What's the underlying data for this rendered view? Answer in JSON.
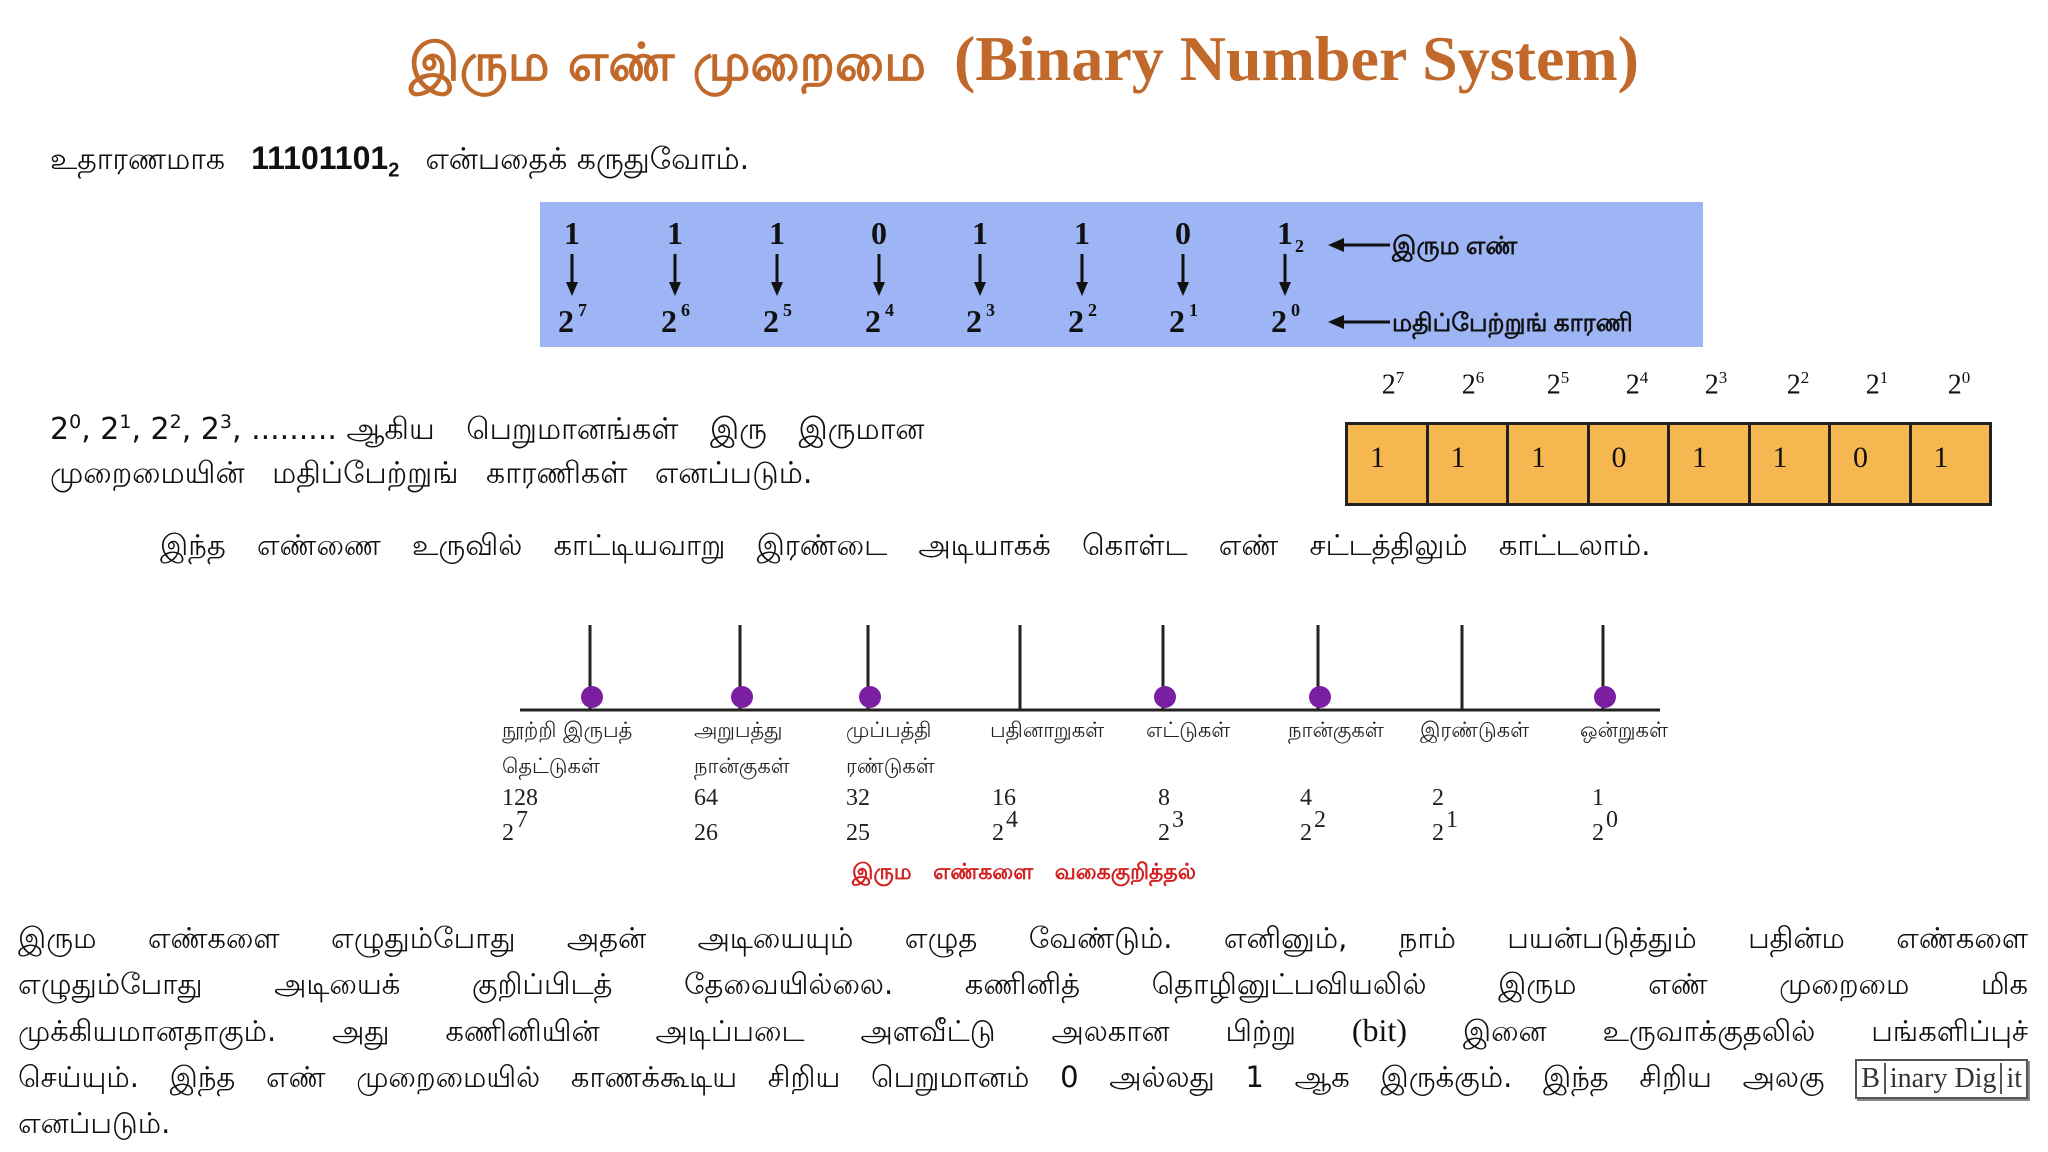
{
  "title": {
    "tamil": "இரும எண் முறைமை",
    "english": "(Binary Number System)"
  },
  "example": {
    "prefix": "உதாரணமாக",
    "number": "11101101",
    "base": "2",
    "suffix": "என்பதைக் கருதுவோம்."
  },
  "panel": {
    "bits": [
      "1",
      "1",
      "1",
      "0",
      "1",
      "1",
      "0",
      "1"
    ],
    "last_subscript": "2",
    "base": "2",
    "exponents": [
      "7",
      "6",
      "5",
      "4",
      "3",
      "2",
      "1",
      "0"
    ],
    "label_binary": "இரும எண்",
    "label_place": "மதிப்பேற்றுங் காரணி"
  },
  "powers_para": {
    "base": "2",
    "exps": [
      "0",
      "1",
      "2",
      "3"
    ],
    "dots": ".........",
    "line1_rest": "ஆகிய பெறுமானங்கள் இரு இருமான",
    "line2": "முறைமையின் மதிப்பேற்றுங் காரணிகள் எனப்படும்."
  },
  "place_table": {
    "base": "2",
    "exponents": [
      "7",
      "6",
      "5",
      "4",
      "3",
      "2",
      "1",
      "0"
    ],
    "bits": [
      "1",
      "1",
      "1",
      "0",
      "1",
      "1",
      "0",
      "1"
    ]
  },
  "chart_intro": "இந்த எண்ணை உருவில் காட்டியவாறு இரண்டை அடியாகக் கொள்ட எண் சட்டத்திலும் காட்டலாம்.",
  "number_line": {
    "places": [
      {
        "label1": "நூற்றி இருபத்",
        "label2": "தெட்டுகள்",
        "value": "128",
        "exp": "7",
        "bit": 1
      },
      {
        "label1": "அறுபத்து",
        "label2": "நான்குகள்",
        "value": "64",
        "exp_plain": "26",
        "bit": 1
      },
      {
        "label1": "முப்பத்தி",
        "label2": "ரண்டுகள்",
        "value": "32",
        "exp_plain": "25",
        "bit": 1
      },
      {
        "label1": "பதினாறுகள்",
        "label2": "",
        "value": "16",
        "exp": "4",
        "bit": 0
      },
      {
        "label1": "எட்டுகள்",
        "label2": "",
        "value": "8",
        "exp": "3",
        "bit": 1
      },
      {
        "label1": "நான்குகள்",
        "label2": "",
        "value": "4",
        "exp": "2",
        "bit": 1
      },
      {
        "label1": "இரண்டுகள்",
        "label2": "",
        "value": "2",
        "exp": "1",
        "bit": 0
      },
      {
        "label1": "ஒன்றுகள்",
        "label2": "",
        "value": "1",
        "exp": "0",
        "bit": 1
      }
    ],
    "caption": "இரும எண்களை வகைகுறித்தல்",
    "colors": {
      "bead": "#7b1fa2",
      "caption": "#d21f1f"
    }
  },
  "body": {
    "l1": "இரும எண்களை எழுதும்போது அதன் அடியையும் எழுத வேண்டும். எனினும், நாம் பயன்படுத்தும் பதின்ம எண்களை",
    "l2": "எழுதும்போது அடியைக் குறிப்பிடத் தேவையில்லை. கணினித் தொழினுட்பவியலில் இரும எண் முறைமை மிக",
    "l3a": "முக்கியமானதாகும். அது கணினியின் அடிப்படை அளவீட்டு அலகான பிற்று",
    "bit": "(bit)",
    "l3b": "இனை உருவாக்குதலில் பங்களிப்புச்",
    "l4": "செய்யும். இந்த எண் முறைமையில் காணக்கூடிய சிறிய பெறுமானம் 0 அல்லது 1 ஆக இருக்கும். இந்த சிறிய அலகு",
    "l5": "எனப்படும்.",
    "logo": {
      "a": "B",
      "b": "inary Dig",
      "c": "it"
    }
  }
}
